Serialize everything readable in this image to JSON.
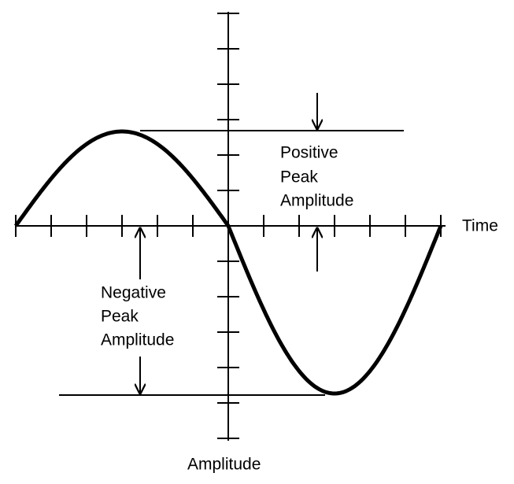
{
  "labels": {
    "positive_peak": [
      "Positive",
      "Peak",
      "Amplitude"
    ],
    "negative_peak": [
      "Negative",
      "Peak",
      "Amplitude"
    ],
    "time_axis": "Time",
    "amplitude_axis": "Amplitude"
  }
}
